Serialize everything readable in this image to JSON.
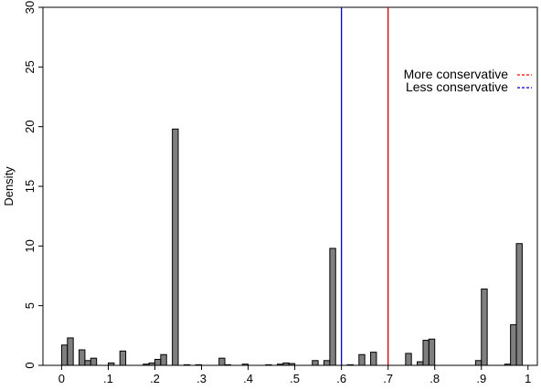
{
  "chart_data": {
    "type": "bar",
    "title": "",
    "xlabel": "",
    "ylabel": "Density",
    "xlim": [
      -0.04,
      1.02
    ],
    "ylim": [
      0,
      30
    ],
    "xticks": [
      {
        "value": 0,
        "label": "0"
      },
      {
        "value": 0.1,
        "label": ".1"
      },
      {
        "value": 0.2,
        "label": ".2"
      },
      {
        "value": 0.3,
        "label": ".3"
      },
      {
        "value": 0.4,
        "label": ".4"
      },
      {
        "value": 0.5,
        "label": ".5"
      },
      {
        "value": 0.6,
        "label": ".6"
      },
      {
        "value": 0.7,
        "label": ".7"
      },
      {
        "value": 0.8,
        "label": ".8"
      },
      {
        "value": 0.9,
        "label": ".9"
      },
      {
        "value": 1,
        "label": "1"
      }
    ],
    "yticks": [
      {
        "value": 0,
        "label": "0"
      },
      {
        "value": 5,
        "label": "5"
      },
      {
        "value": 10,
        "label": "10"
      },
      {
        "value": 15,
        "label": "15"
      },
      {
        "value": 20,
        "label": "20"
      },
      {
        "value": 25,
        "label": "25"
      },
      {
        "value": 30,
        "label": "30"
      }
    ],
    "bin_width": 0.0125,
    "bar_color": "#7f7f7f",
    "bars": [
      {
        "x": 0.0,
        "density": 1.7
      },
      {
        "x": 0.0125,
        "density": 2.3
      },
      {
        "x": 0.0375,
        "density": 1.3
      },
      {
        "x": 0.05,
        "density": 0.4
      },
      {
        "x": 0.0625,
        "density": 0.6
      },
      {
        "x": 0.1,
        "density": 0.2
      },
      {
        "x": 0.125,
        "density": 1.2
      },
      {
        "x": 0.175,
        "density": 0.1
      },
      {
        "x": 0.1875,
        "density": 0.2
      },
      {
        "x": 0.2,
        "density": 0.5
      },
      {
        "x": 0.2125,
        "density": 0.9
      },
      {
        "x": 0.2375,
        "density": 19.8
      },
      {
        "x": 0.2625,
        "density": 0.05
      },
      {
        "x": 0.2875,
        "density": 0.05
      },
      {
        "x": 0.3375,
        "density": 0.6
      },
      {
        "x": 0.35,
        "density": 0.05
      },
      {
        "x": 0.3875,
        "density": 0.1
      },
      {
        "x": 0.4375,
        "density": 0.05
      },
      {
        "x": 0.4625,
        "density": 0.1
      },
      {
        "x": 0.475,
        "density": 0.2
      },
      {
        "x": 0.4875,
        "density": 0.15
      },
      {
        "x": 0.5375,
        "density": 0.4
      },
      {
        "x": 0.5625,
        "density": 0.4
      },
      {
        "x": 0.575,
        "density": 9.8
      },
      {
        "x": 0.6125,
        "density": 0.05
      },
      {
        "x": 0.6375,
        "density": 0.9
      },
      {
        "x": 0.6625,
        "density": 1.1
      },
      {
        "x": 0.7375,
        "density": 1.0
      },
      {
        "x": 0.7625,
        "density": 0.3
      },
      {
        "x": 0.775,
        "density": 2.1
      },
      {
        "x": 0.7875,
        "density": 2.2
      },
      {
        "x": 0.8875,
        "density": 0.4
      },
      {
        "x": 0.9,
        "density": 6.4
      },
      {
        "x": 0.95,
        "density": 0.1
      },
      {
        "x": 0.9625,
        "density": 3.4
      },
      {
        "x": 0.975,
        "density": 10.2
      }
    ],
    "vlines": [
      {
        "x": 0.6,
        "color": "#0000cc",
        "label": "Less conservative"
      },
      {
        "x": 0.7,
        "color": "#cc0000",
        "label": "More conservative"
      }
    ],
    "legend": {
      "placement": "top-right",
      "entries": [
        {
          "label": "More conservative",
          "color": "#ff0000",
          "style": "dashed"
        },
        {
          "label": "Less conservative",
          "color": "#0000cc",
          "style": "dashed"
        }
      ]
    },
    "grid": false
  }
}
